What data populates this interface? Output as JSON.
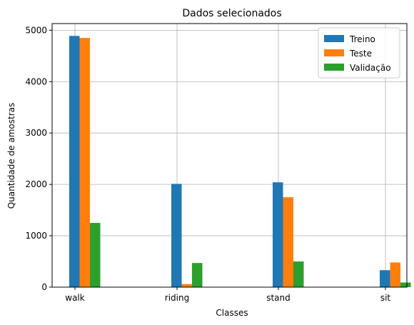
{
  "chart_data": {
    "type": "bar",
    "title": "Dados selecionados",
    "xlabel": "Classes",
    "ylabel": "Quantidade de amostras",
    "ylim": [
      0,
      5130
    ],
    "yticks": [
      0,
      1000,
      2000,
      3000,
      4000,
      5000
    ],
    "grid": true,
    "legend_position": "top-right",
    "categories": [
      "walk",
      "riding",
      "stand",
      "sit"
    ],
    "series": [
      {
        "name": "Treino",
        "color": "#1f77b4",
        "values": [
          4890,
          2010,
          2040,
          330
        ]
      },
      {
        "name": "Teste",
        "color": "#ff7f0e",
        "values": [
          4850,
          60,
          1750,
          480
        ]
      },
      {
        "name": "Validação",
        "color": "#2ca02c",
        "values": [
          1250,
          470,
          500,
          90
        ]
      }
    ]
  }
}
